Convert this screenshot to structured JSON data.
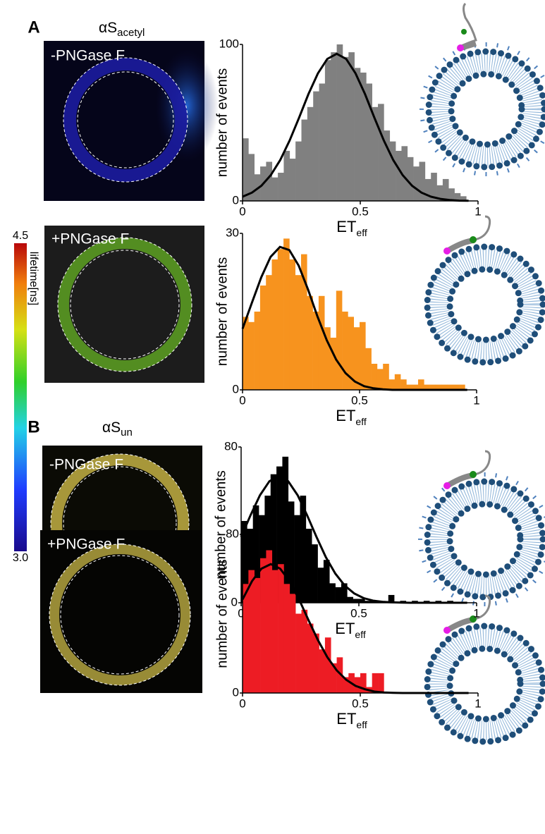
{
  "panels": [
    {
      "label": "A",
      "title": "αS",
      "title_sub": "acetyl",
      "images": [
        "-PNGase F",
        "+PNGase F"
      ]
    },
    {
      "label": "B",
      "title": "αS",
      "title_sub": "un",
      "images": [
        "-PNGase F",
        "+PNGase F"
      ]
    }
  ],
  "colorbar": {
    "lim": [
      3,
      4.5
    ],
    "ticks": [
      {
        "value": 4.5,
        "label": "4.5"
      },
      {
        "value": 3,
        "label": "3.0"
      }
    ],
    "label": "lifetime[ns]"
  },
  "chart_data": [
    {
      "type": "histogram",
      "color": "#808080",
      "ylabel": "number of events",
      "xlabel": "ET",
      "xlabel_sub": "eff",
      "bins": [
        0,
        0.025,
        0.05,
        0.075,
        0.1,
        0.125,
        0.15,
        0.175,
        0.2,
        0.225,
        0.25,
        0.275,
        0.3,
        0.325,
        0.35,
        0.375,
        0.4,
        0.425,
        0.45,
        0.475,
        0.5,
        0.525,
        0.55,
        0.575,
        0.6,
        0.625,
        0.65,
        0.675,
        0.7,
        0.725,
        0.75,
        0.775,
        0.8,
        0.825,
        0.85,
        0.875,
        0.9,
        0.925,
        0.95
      ],
      "values": [
        40,
        30,
        17,
        22,
        25,
        15,
        18,
        32,
        27,
        38,
        52,
        60,
        70,
        75,
        90,
        95,
        100,
        92,
        95,
        85,
        82,
        75,
        60,
        62,
        45,
        38,
        32,
        35,
        28,
        22,
        25,
        14,
        18,
        10,
        14,
        8,
        5,
        3
      ],
      "fit": {
        "color": "#000000",
        "x": [
          0,
          0.04,
          0.08,
          0.12,
          0.16,
          0.2,
          0.24,
          0.28,
          0.32,
          0.36,
          0.4,
          0.44,
          0.48,
          0.52,
          0.56,
          0.6,
          0.64,
          0.68,
          0.72,
          0.76,
          0.8,
          0.84,
          0.88,
          0.92,
          0.96
        ],
        "values": [
          2.7,
          5.3,
          9.7,
          16.5,
          26.1,
          38.6,
          53.2,
          68.3,
          81.5,
          90.7,
          94,
          90.7,
          81.5,
          68.3,
          53.2,
          38.6,
          26.1,
          16.5,
          9.7,
          5.3,
          2.7,
          1.3,
          0.6,
          0.2,
          0.1
        ]
      },
      "xlim": [
        0,
        1
      ],
      "xticks": [
        0,
        0.5,
        1
      ],
      "ylim": [
        0,
        100
      ],
      "yticks": [
        0,
        100
      ]
    },
    {
      "type": "histogram",
      "color": "#f7931e",
      "ylabel": "number of events",
      "xlabel": "ET",
      "xlabel_sub": "eff",
      "bins": [
        0,
        0.025,
        0.05,
        0.075,
        0.1,
        0.125,
        0.15,
        0.175,
        0.2,
        0.225,
        0.25,
        0.275,
        0.3,
        0.325,
        0.35,
        0.375,
        0.4,
        0.425,
        0.45,
        0.475,
        0.5,
        0.525,
        0.55,
        0.575,
        0.6,
        0.625,
        0.65,
        0.675,
        0.7,
        0.725,
        0.75,
        0.775,
        0.8,
        0.825,
        0.85,
        0.875,
        0.9,
        0.925,
        0.95,
        0.975
      ],
      "values": [
        14,
        13,
        15,
        20,
        22,
        25,
        27,
        29,
        25,
        22,
        26,
        18,
        15,
        18,
        12,
        10,
        19,
        15,
        14,
        12,
        13,
        8,
        5,
        4,
        5,
        2,
        3,
        2,
        1,
        1,
        2,
        1,
        1,
        1,
        1,
        1,
        1,
        1,
        0
      ],
      "fit": {
        "color": "#000000",
        "x": [
          0,
          0.04,
          0.08,
          0.12,
          0.16,
          0.2,
          0.24,
          0.28,
          0.32,
          0.36,
          0.4,
          0.44,
          0.48,
          0.52,
          0.56,
          0.6,
          0.64,
          0.68,
          0.72,
          0.76,
          0.8,
          0.84,
          0.88,
          0.92,
          0.96
        ],
        "values": [
          11.7,
          16.7,
          21.6,
          25.5,
          27.4,
          26.8,
          23.8,
          19.2,
          14.1,
          9.5,
          5.8,
          3.2,
          1.6,
          0.7,
          0.3,
          0.1,
          0,
          0,
          0,
          0,
          0,
          0,
          0,
          0,
          0
        ]
      },
      "xlim": [
        0,
        1
      ],
      "xticks": [
        0,
        0.5,
        1
      ],
      "ylim": [
        0,
        30
      ],
      "yticks": [
        0,
        30
      ]
    },
    {
      "type": "histogram",
      "color": "#000000",
      "ylabel": "number of events",
      "xlabel": "ET",
      "xlabel_sub": "eff",
      "bins": [
        0,
        0.025,
        0.05,
        0.075,
        0.1,
        0.125,
        0.15,
        0.175,
        0.2,
        0.225,
        0.25,
        0.275,
        0.3,
        0.325,
        0.35,
        0.375,
        0.4,
        0.425,
        0.45,
        0.475,
        0.5,
        0.525,
        0.55,
        0.575,
        0.6,
        0.625,
        0.65,
        0.675,
        0.7,
        0.725,
        0.75,
        0.775,
        0.8,
        0.825,
        0.85,
        0.875,
        0.9,
        0.925,
        0.95,
        0.975
      ],
      "values": [
        42,
        38,
        50,
        45,
        55,
        66,
        70,
        75,
        52,
        45,
        55,
        38,
        30,
        18,
        22,
        10,
        8,
        10,
        3,
        2,
        2,
        1,
        1,
        1,
        0,
        4,
        0,
        1,
        0,
        1,
        0,
        1,
        0,
        1,
        0,
        1,
        0,
        0,
        0
      ],
      "fit": {
        "color": "#000000",
        "x": [
          0,
          0.04,
          0.08,
          0.12,
          0.16,
          0.2,
          0.24,
          0.28,
          0.32,
          0.36,
          0.4,
          0.44,
          0.48,
          0.52,
          0.56,
          0.6,
          0.64,
          0.68,
          0.72,
          0.76,
          0.8,
          0.84,
          0.88,
          0.92,
          0.96
        ],
        "values": [
          33.8,
          45,
          55.2,
          62.4,
          65,
          62.4,
          55.2,
          45,
          33.8,
          23.4,
          15,
          8.8,
          4.8,
          2.4,
          1.1,
          0.5,
          0.2,
          0.1,
          0,
          0,
          0,
          0,
          0,
          0,
          0
        ]
      },
      "xlim": [
        0,
        1
      ],
      "xticks": [
        0,
        0.5,
        1
      ],
      "ylim": [
        0,
        80
      ],
      "yticks": [
        0,
        80
      ]
    },
    {
      "type": "histogram",
      "color": "#ed1c24",
      "ylabel": "number of events",
      "xlabel": "ET",
      "xlabel_sub": "eff",
      "bins": [
        0,
        0.025,
        0.05,
        0.075,
        0.1,
        0.125,
        0.15,
        0.175,
        0.2,
        0.225,
        0.25,
        0.275,
        0.3,
        0.325,
        0.35,
        0.375,
        0.4,
        0.425,
        0.45,
        0.475,
        0.5,
        0.525,
        0.55,
        0.575,
        0.6
      ],
      "values": [
        55,
        62,
        58,
        68,
        72,
        62,
        65,
        55,
        50,
        40,
        42,
        35,
        30,
        22,
        28,
        15,
        18,
        8,
        10,
        8,
        10,
        3,
        10,
        10
      ],
      "fit": {
        "color": "#000000",
        "x": [
          0,
          0.04,
          0.08,
          0.12,
          0.16,
          0.2,
          0.24,
          0.28,
          0.32,
          0.36,
          0.4,
          0.44,
          0.48,
          0.52,
          0.56,
          0.6,
          0.64,
          0.68,
          0.72,
          0.76,
          0.8,
          0.84,
          0.88,
          0.92,
          0.96
        ],
        "values": [
          47.2,
          56.4,
          62.7,
          65,
          62.7,
          56.4,
          47.2,
          36.8,
          26.7,
          18.1,
          11.4,
          6.7,
          3.6,
          1.9,
          0.7,
          0.3,
          0.1,
          0,
          0,
          0,
          0,
          0,
          0,
          0,
          0
        ]
      },
      "xlim": [
        0,
        1
      ],
      "xticks": [
        0,
        0.5,
        1
      ],
      "ylim": [
        0,
        80
      ],
      "yticks": [
        0,
        80
      ]
    }
  ]
}
